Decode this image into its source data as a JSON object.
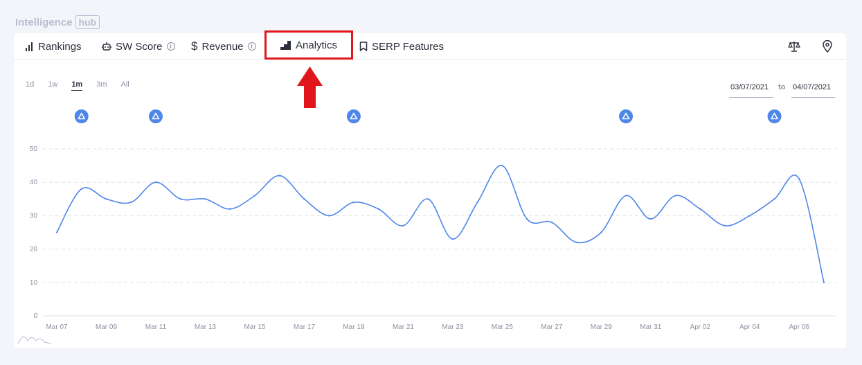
{
  "brand": {
    "name": "Intelligence",
    "badge": "hub"
  },
  "tabs": [
    {
      "label": "Rankings",
      "icon": "bar-chart-icon"
    },
    {
      "label": "SW Score",
      "icon": "robot-icon",
      "info": "i"
    },
    {
      "label": "Revenue",
      "icon": "dollar-icon",
      "info": "i"
    },
    {
      "label": "Analytics",
      "icon": "steps-chart-icon",
      "highlighted": true
    },
    {
      "label": "SERP Features",
      "icon": "bookmark-icon"
    }
  ],
  "toolbar": {
    "compare_icon": "scale-icon",
    "location_icon": "map-pin-icon"
  },
  "ranges": [
    "1d",
    "1w",
    "1m",
    "3m",
    "All"
  ],
  "active_range": "1m",
  "date_range": {
    "from": "03/07/2021",
    "to_label": "to",
    "to": "04/07/2021"
  },
  "annotation_color": "#4f86ea",
  "highlight_color": "#e0161c",
  "chart_data": {
    "type": "line",
    "title": "",
    "xlabel": "",
    "ylabel": "",
    "ylim": [
      0,
      50
    ],
    "yticks": [
      0,
      10,
      20,
      30,
      40,
      50
    ],
    "xtick_labels": [
      "Mar 07",
      "Mar 09",
      "Mar 11",
      "Mar 13",
      "Mar 15",
      "Mar 17",
      "Mar 19",
      "Mar 21",
      "Mar 23",
      "Mar 25",
      "Mar 27",
      "Mar 29",
      "Mar 31",
      "Apr 02",
      "Apr 04",
      "Apr 06"
    ],
    "grid": true,
    "line_color": "#4f86ea",
    "x": [
      0,
      1,
      2,
      3,
      4,
      5,
      6,
      7,
      8,
      9,
      10,
      11,
      12,
      13,
      14,
      15,
      16,
      17,
      18,
      19,
      20,
      21,
      22,
      23,
      24,
      25,
      26,
      27,
      28,
      29,
      30,
      31
    ],
    "values": [
      25,
      38,
      35,
      34,
      40,
      35,
      35,
      32,
      36,
      42,
      35,
      30,
      34,
      32,
      27,
      35,
      23,
      34,
      45,
      29,
      28,
      22,
      25,
      36,
      29,
      36,
      32,
      27,
      30,
      35,
      41,
      10
    ],
    "annotations_x": [
      1,
      4,
      12,
      23,
      29
    ]
  }
}
